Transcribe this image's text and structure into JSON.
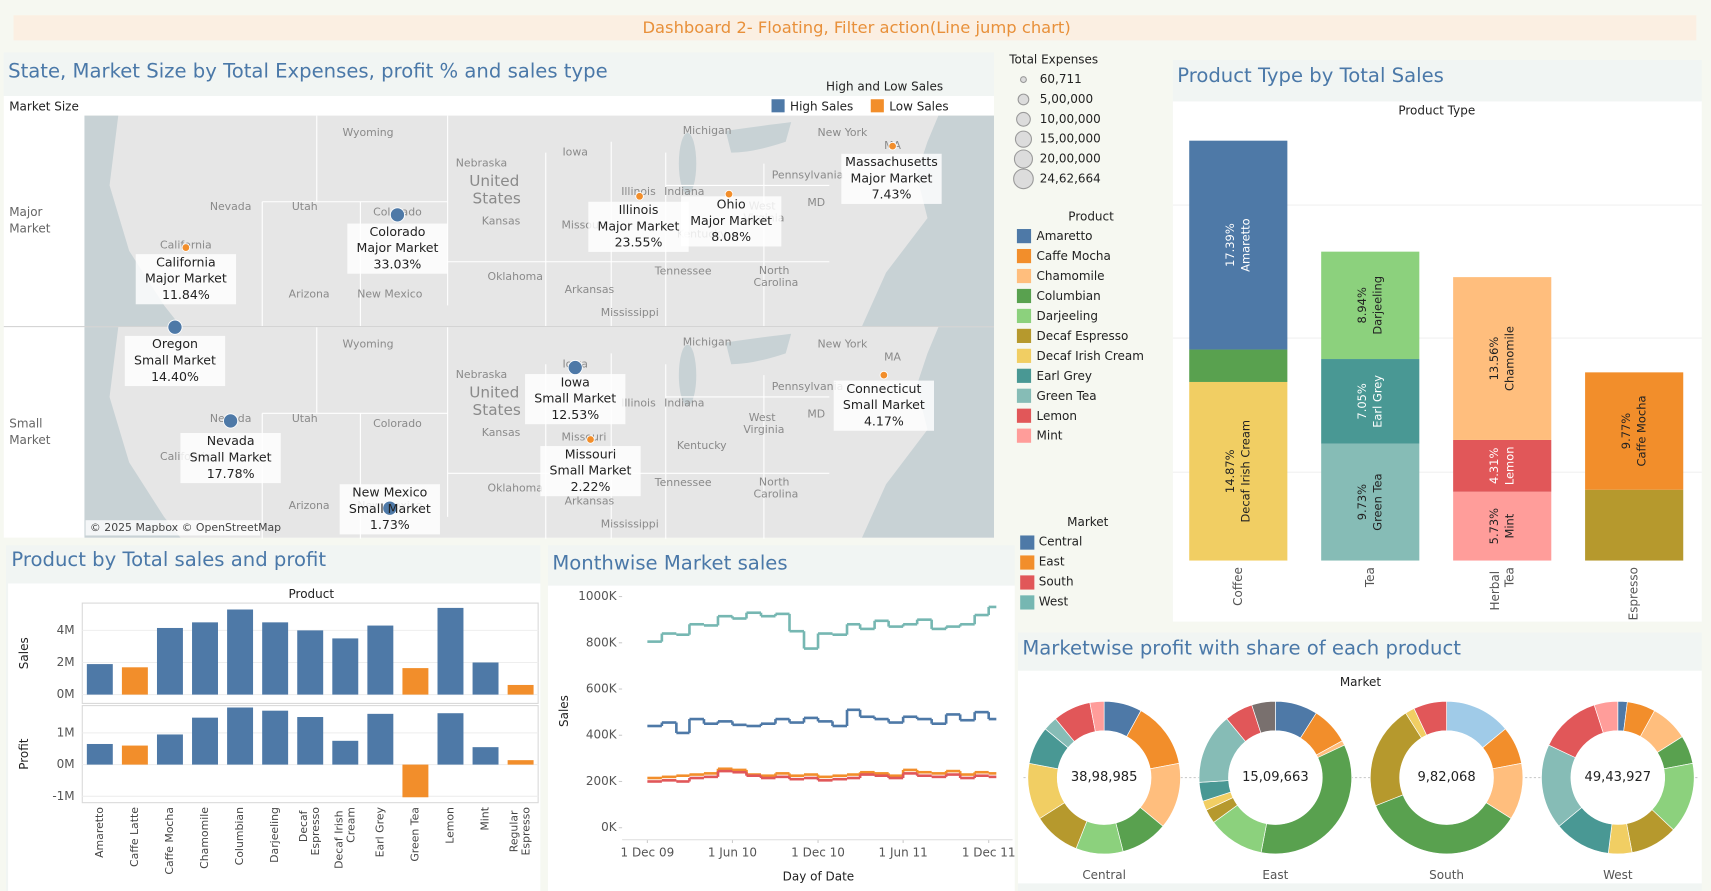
{
  "title": "Dashboard 2- Floating, Filter action(Line jump chart)",
  "chart_data": [
    {
      "type": "map",
      "title": "State, Market Size by Total Expenses, profit % and sales type",
      "row_header": "Market Size",
      "rows": [
        "Major Market",
        "Small Market"
      ],
      "legend_title": "High and Low Sales",
      "legend": [
        {
          "name": "High Sales",
          "color": "#4e79a7"
        },
        {
          "name": "Low Sales",
          "color": "#f28e2b"
        }
      ],
      "places": [
        "Wyoming",
        "Nebraska",
        "United States",
        "Iowa",
        "Michigan",
        "New York",
        "Pennsylvania",
        "Illinois",
        "Indiana",
        "Nevada",
        "Utah",
        "Colorado",
        "Kansas",
        "Missouri",
        "California",
        "Oklahoma",
        "Arizona",
        "New Mexico",
        "Arkansas",
        "Tennessee",
        "North Carolina",
        "Mississippi",
        "MD",
        "Kentucky",
        "West Virginia",
        "MA"
      ],
      "attribution": "© 2025 Mapbox © OpenStreetMap",
      "markers": [
        {
          "name": "California",
          "market": "Major Market",
          "value": 11.84,
          "value_label": "11.84%",
          "color": "#f28e2b"
        },
        {
          "name": "Colorado",
          "market": "Major Market",
          "value": 33.03,
          "value_label": "33.03%",
          "color": "#4e79a7"
        },
        {
          "name": "Illinois",
          "market": "Major Market",
          "value": 23.55,
          "value_label": "23.55%",
          "color": "#f28e2b"
        },
        {
          "name": "Ohio",
          "market": "Major Market",
          "value": 8.08,
          "value_label": "8.08%",
          "color": "#f28e2b"
        },
        {
          "name": "Massachusetts",
          "market": "Major Market",
          "value": 7.43,
          "value_label": "7.43%",
          "color": "#f28e2b"
        },
        {
          "name": "Oregon",
          "market": "Small Market",
          "value": 14.4,
          "value_label": "14.40%",
          "color": "#4e79a7"
        },
        {
          "name": "Nevada",
          "market": "Small Market",
          "value": 17.78,
          "value_label": "17.78%",
          "color": "#4e79a7"
        },
        {
          "name": "Iowa",
          "market": "Small Market",
          "value": 12.53,
          "value_label": "12.53%",
          "color": "#4e79a7"
        },
        {
          "name": "Missouri",
          "market": "Small Market",
          "value": 2.22,
          "value_label": "2.22%",
          "color": "#f28e2b"
        },
        {
          "name": "Connecticut",
          "market": "Small Market",
          "value": 4.17,
          "value_label": "4.17%",
          "color": "#f28e2b"
        },
        {
          "name": "New Mexico",
          "market": "Small Market",
          "value": 1.73,
          "value_label": "1.73%",
          "color": "#4e79a7"
        }
      ]
    },
    {
      "type": "bar",
      "stacked": true,
      "title": "Product Type by Total Sales",
      "header": "Product Type",
      "categories": [
        "Coffee",
        "Tea",
        "Herbal Tea",
        "Espresso"
      ],
      "series": [
        {
          "name": "Decaf Irish Cream",
          "color": "#f1ce63",
          "values": [
            14.87,
            null,
            null,
            null
          ],
          "value_labels": [
            "14.87%",
            null,
            null,
            null
          ]
        },
        {
          "name": "Columbian",
          "color": "#59a14f",
          "values": [
            2.7,
            null,
            null,
            null
          ]
        },
        {
          "name": "Amaretto",
          "color": "#4e79a7",
          "values": [
            17.39,
            null,
            null,
            null
          ],
          "value_labels": [
            "17.39%",
            null,
            null,
            null
          ]
        },
        {
          "name": "Green Tea",
          "color": "#86bcb6",
          "values": [
            null,
            9.73,
            null,
            null
          ],
          "value_labels": [
            null,
            "9.73%",
            null,
            null
          ]
        },
        {
          "name": "Earl Grey",
          "color": "#499894",
          "values": [
            null,
            7.05,
            null,
            null
          ],
          "value_labels": [
            null,
            "7.05%",
            null,
            null
          ]
        },
        {
          "name": "Darjeeling",
          "color": "#8cd17d",
          "values": [
            null,
            8.94,
            null,
            null
          ],
          "value_labels": [
            null,
            "8.94%",
            null,
            null
          ]
        },
        {
          "name": "Mint",
          "color": "#ff9d9a",
          "values": [
            null,
            null,
            5.73,
            null
          ],
          "value_labels": [
            null,
            null,
            "5.73%",
            null
          ]
        },
        {
          "name": "Lemon",
          "color": "#e15759",
          "values": [
            null,
            null,
            4.31,
            null
          ],
          "value_labels": [
            null,
            null,
            "4.31%",
            null
          ]
        },
        {
          "name": "Chamomile",
          "color": "#ffbe7d",
          "values": [
            null,
            null,
            13.56,
            null
          ],
          "value_labels": [
            null,
            null,
            "13.56%",
            null
          ]
        },
        {
          "name": "Decaf Espresso",
          "color": "#b6992d",
          "values": [
            null,
            null,
            null,
            5.9
          ]
        },
        {
          "name": "Caffe Mocha",
          "color": "#f28e2b",
          "values": [
            null,
            null,
            null,
            9.77
          ],
          "value_labels": [
            null,
            null,
            null,
            "9.77%"
          ]
        }
      ]
    },
    {
      "type": "bar",
      "title": "Product by Total sales and profit",
      "header": "Product",
      "categories": [
        "Amaretto",
        "Caffe Latte",
        "Caffe Mocha",
        "Chamomile",
        "Columbian",
        "Darjeeling",
        "Decaf Espresso",
        "Decaf Irish Cream",
        "Earl Grey",
        "Green Tea",
        "Lemon",
        "Mint",
        "Regular Espresso"
      ],
      "colors": [
        "#4e79a7",
        "#f28e2b",
        "#4e79a7",
        "#4e79a7",
        "#4e79a7",
        "#4e79a7",
        "#4e79a7",
        "#4e79a7",
        "#4e79a7",
        "#f28e2b",
        "#4e79a7",
        "#4e79a7",
        "#f28e2b"
      ],
      "panes": [
        {
          "name": "Sales",
          "values": [
            1900000,
            1700000,
            4150000,
            4500000,
            5300000,
            4500000,
            4000000,
            3500000,
            4300000,
            1650000,
            5400000,
            2000000,
            600000
          ],
          "ylim": [
            -550000,
            5700000
          ],
          "yticks": [
            {
              "value": 0,
              "label": "0M"
            },
            {
              "value": 2000000,
              "label": "2M"
            },
            {
              "value": 4000000,
              "label": "4M"
            }
          ]
        },
        {
          "name": "Profit",
          "values": [
            650000,
            600000,
            950000,
            1480000,
            1800000,
            1700000,
            1500000,
            750000,
            1600000,
            -1030000,
            1620000,
            550000,
            140000
          ],
          "ylim": [
            -1200000,
            1860000
          ],
          "yticks": [
            {
              "value": -1000000,
              "label": "-1M"
            },
            {
              "value": 0,
              "label": "0M"
            },
            {
              "value": 1000000,
              "label": "1M"
            }
          ]
        }
      ]
    },
    {
      "type": "line",
      "step": true,
      "title": "Monthwise Market sales",
      "x_label": "Day of Date",
      "y_label": "Sales",
      "x": [
        "2009-12-01",
        "2010-01-01",
        "2010-02-01",
        "2010-03-01",
        "2010-04-01",
        "2010-05-01",
        "2010-06-01",
        "2010-07-01",
        "2010-08-01",
        "2010-09-01",
        "2010-10-01",
        "2010-11-01",
        "2010-12-01",
        "2011-01-01",
        "2011-02-01",
        "2011-03-01",
        "2011-04-01",
        "2011-05-01",
        "2011-06-01",
        "2011-07-01",
        "2011-08-01",
        "2011-09-01",
        "2011-10-01",
        "2011-11-01",
        "2011-12-01"
      ],
      "xlim": [
        "2009-10-08",
        "2012-01-21"
      ],
      "xticks": [
        {
          "value": "2009-12-01",
          "label": "1 Dec 09"
        },
        {
          "value": "2010-06-01",
          "label": "1 Jun 10"
        },
        {
          "value": "2010-12-01",
          "label": "1 Dec 10"
        },
        {
          "value": "2011-06-01",
          "label": "1 Jun 11"
        },
        {
          "value": "2011-12-01",
          "label": "1 Dec 11"
        }
      ],
      "ylim": [
        -52000,
        1033000
      ],
      "yticks": [
        {
          "value": 0,
          "label": "0K"
        },
        {
          "value": 200000,
          "label": "200K"
        },
        {
          "value": 400000,
          "label": "400K"
        },
        {
          "value": 600000,
          "label": "600K"
        },
        {
          "value": 800000,
          "label": "800K"
        },
        {
          "value": 1000000,
          "label": "1000K"
        }
      ],
      "series": [
        {
          "name": "Central",
          "color": "#4e79a7",
          "values": [
            440000,
            455000,
            410000,
            470000,
            450000,
            460000,
            445000,
            440000,
            450000,
            470000,
            455000,
            475000,
            460000,
            440000,
            510000,
            480000,
            470000,
            455000,
            480000,
            470000,
            450000,
            490000,
            465000,
            500000,
            470000
          ]
        },
        {
          "name": "East",
          "color": "#f28e2b",
          "values": [
            215000,
            220000,
            225000,
            230000,
            235000,
            255000,
            250000,
            230000,
            225000,
            235000,
            225000,
            230000,
            220000,
            225000,
            230000,
            240000,
            235000,
            225000,
            250000,
            240000,
            235000,
            245000,
            230000,
            240000,
            235000
          ]
        },
        {
          "name": "South",
          "color": "#e15759",
          "values": [
            200000,
            205000,
            200000,
            215000,
            220000,
            245000,
            240000,
            225000,
            215000,
            220000,
            210000,
            215000,
            205000,
            210000,
            215000,
            230000,
            225000,
            215000,
            235000,
            225000,
            220000,
            230000,
            215000,
            225000,
            220000
          ]
        },
        {
          "name": "West",
          "color": "#76b7b2",
          "values": [
            805000,
            840000,
            835000,
            880000,
            875000,
            915000,
            905000,
            930000,
            915000,
            925000,
            850000,
            775000,
            840000,
            835000,
            880000,
            860000,
            895000,
            870000,
            880000,
            900000,
            860000,
            870000,
            880000,
            920000,
            955000
          ]
        }
      ]
    },
    {
      "type": "pie",
      "donut": true,
      "title": "Marketwise profit with share of each product",
      "header": "Market",
      "categories": [
        "Amaretto",
        "Caffe Latte",
        "Caffe Mocha",
        "Chamomile",
        "Columbian",
        "Darjeeling",
        "Decaf Espresso",
        "Decaf Irish Cream",
        "Earl Grey",
        "Green Tea",
        "Lemon",
        "Mint",
        "Regular Espresso"
      ],
      "colors": [
        "#4e79a7",
        "#a0cbe8",
        "#f28e2b",
        "#ffbe7d",
        "#59a14f",
        "#8cd17d",
        "#b6992d",
        "#f1ce63",
        "#499894",
        "#86bcb6",
        "#e15759",
        "#ff9d9a",
        "#79706e"
      ],
      "series": [
        {
          "name": "Central",
          "total": {
            "value": 3898985,
            "label": "38,98,985"
          },
          "values": [
            8,
            0,
            14,
            14,
            10,
            10,
            10,
            12,
            8,
            3,
            8,
            3,
            0
          ]
        },
        {
          "name": "East",
          "total": {
            "value": 1509663,
            "label": "15,09,663"
          },
          "values": [
            9,
            0,
            8,
            1,
            35,
            12,
            3,
            2,
            4,
            15,
            6,
            0,
            5
          ]
        },
        {
          "name": "South",
          "total": {
            "value": 982068,
            "label": "9,82,068"
          },
          "values": [
            0,
            14,
            8,
            12,
            35,
            0,
            22,
            2,
            0,
            0,
            7,
            0,
            0
          ]
        },
        {
          "name": "West",
          "total": {
            "value": 4943927,
            "label": "49,43,927"
          },
          "values": [
            2,
            0,
            6,
            8,
            6,
            15,
            10,
            5,
            12,
            18,
            13,
            5,
            0
          ]
        }
      ]
    }
  ],
  "size_legend": {
    "title": "Total Expenses",
    "items": [
      {
        "value": 60711,
        "label": "60,711"
      },
      {
        "value": 500000,
        "label": "5,00,000"
      },
      {
        "value": 1000000,
        "label": "10,00,000"
      },
      {
        "value": 1500000,
        "label": "15,00,000"
      },
      {
        "value": 2000000,
        "label": "20,00,000"
      },
      {
        "value": 2462664,
        "label": "24,62,664"
      }
    ]
  },
  "product_legend": {
    "title": "Product",
    "items": [
      {
        "name": "Amaretto",
        "color": "#4e79a7"
      },
      {
        "name": "Caffe Mocha",
        "color": "#f28e2b"
      },
      {
        "name": "Chamomile",
        "color": "#ffbe7d"
      },
      {
        "name": "Columbian",
        "color": "#59a14f"
      },
      {
        "name": "Darjeeling",
        "color": "#8cd17d"
      },
      {
        "name": "Decaf Espresso",
        "color": "#b6992d"
      },
      {
        "name": "Decaf Irish Cream",
        "color": "#f1ce63"
      },
      {
        "name": "Earl Grey",
        "color": "#499894"
      },
      {
        "name": "Green Tea",
        "color": "#86bcb6"
      },
      {
        "name": "Lemon",
        "color": "#e15759"
      },
      {
        "name": "Mint",
        "color": "#ff9d9a"
      }
    ]
  },
  "market_legend": {
    "title": "Market"
  }
}
